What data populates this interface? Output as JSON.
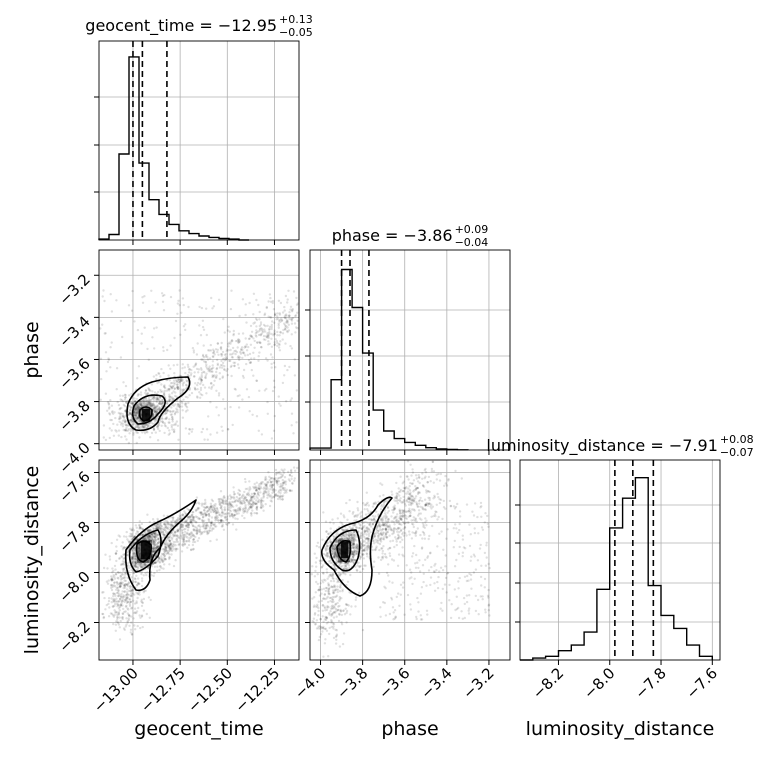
{
  "chart_data": {
    "type": "corner",
    "parameters": [
      "geocent_time",
      "phase",
      "luminosity_distance"
    ],
    "titles": [
      {
        "param": "geocent_time",
        "text": "geocent_time = −12.95",
        "sup": "+0.13",
        "sub": "−0.05",
        "median": -12.95,
        "lower": -13.0,
        "upper": -12.82
      },
      {
        "param": "phase",
        "text": "phase = −3.86",
        "sup": "+0.09",
        "sub": "−0.04",
        "median": -3.86,
        "lower": -3.9,
        "upper": -3.77
      },
      {
        "param": "luminosity_distance",
        "text": "luminosity_distance = −7.91",
        "sup": "+0.08",
        "sub": "−0.07",
        "median": -7.91,
        "lower": -7.98,
        "upper": -7.83
      }
    ],
    "axis_labels": {
      "x": [
        "geocent_time",
        "phase",
        "luminosity_distance"
      ],
      "y": [
        "phase",
        "luminosity_distance"
      ]
    },
    "ranges": {
      "geocent_time": [
        -13.18,
        -12.12
      ],
      "phase": [
        -4.05,
        -3.1
      ],
      "luminosity_distance": [
        -8.35,
        -7.57
      ]
    },
    "ticks": {
      "geocent_time": {
        "values": [
          -13.0,
          -12.75,
          -12.5,
          -12.25
        ],
        "labels": [
          "−13.00",
          "−12.75",
          "−12.50",
          "−12.25"
        ]
      },
      "phase_x": {
        "values": [
          -4.0,
          -3.8,
          -3.6,
          -3.4,
          -3.2
        ],
        "labels": [
          "−4.0",
          "−3.8",
          "−3.6",
          "−3.4",
          "−3.2"
        ]
      },
      "phase_y": {
        "values": [
          -3.2,
          -3.4,
          -3.6,
          -3.8,
          -4.0
        ],
        "labels": [
          "−3.2",
          "−3.4",
          "−3.6",
          "−3.8",
          "−4.0"
        ]
      },
      "luminosity_distance_x": {
        "values": [
          -8.2,
          -8.0,
          -7.8,
          -7.6
        ],
        "labels": [
          "−8.2",
          "−8.0",
          "−7.8",
          "−7.6"
        ]
      },
      "luminosity_distance_y": {
        "values": [
          -7.6,
          -7.8,
          -8.0,
          -8.2
        ],
        "labels": [
          "−7.6",
          "−7.8",
          "−8.0",
          "−8.2"
        ]
      }
    },
    "histograms": {
      "geocent_time": {
        "edges": [
          -13.18,
          -13.127,
          -13.074,
          -13.021,
          -12.968,
          -12.915,
          -12.862,
          -12.809,
          -12.756,
          -12.703,
          -12.65,
          -12.597,
          -12.544,
          -12.491,
          -12.438,
          -12.385
        ],
        "counts": [
          0.005,
          0.03,
          0.47,
          1.0,
          0.42,
          0.22,
          0.14,
          0.085,
          0.05,
          0.035,
          0.022,
          0.014,
          0.008,
          0.005,
          0.0
        ]
      },
      "phase": {
        "edges": [
          -4.05,
          -4.0,
          -3.95,
          -3.9,
          -3.85,
          -3.8,
          -3.75,
          -3.7,
          -3.65,
          -3.6,
          -3.55,
          -3.5,
          -3.45,
          -3.4,
          -3.35,
          -3.3
        ],
        "counts": [
          0.01,
          0.01,
          0.37,
          0.95,
          0.75,
          0.51,
          0.21,
          0.1,
          0.06,
          0.04,
          0.025,
          0.012,
          0.006,
          0.003,
          0.001
        ]
      },
      "luminosity_distance": {
        "edges": [
          -8.35,
          -8.3,
          -8.25,
          -8.2,
          -8.15,
          -8.1,
          -8.05,
          -8.0,
          -7.95,
          -7.9,
          -7.85,
          -7.8,
          -7.75,
          -7.7,
          -7.65,
          -7.6
        ],
        "counts": [
          0.0,
          0.01,
          0.02,
          0.05,
          0.08,
          0.15,
          0.38,
          0.71,
          0.87,
          0.98,
          0.4,
          0.24,
          0.17,
          0.08,
          0.02
        ]
      }
    },
    "scatter_summary": {
      "geocent_time_vs_phase": {
        "peak": [
          -13.0,
          -3.88
        ],
        "trend": "positive"
      },
      "geocent_time_vs_luminosity_distance": {
        "peak": [
          -12.99,
          -7.92
        ],
        "trend": "positive"
      },
      "phase_vs_luminosity_distance": {
        "peak": [
          -3.86,
          -7.92
        ],
        "trend": "positive"
      }
    },
    "grid": true
  }
}
